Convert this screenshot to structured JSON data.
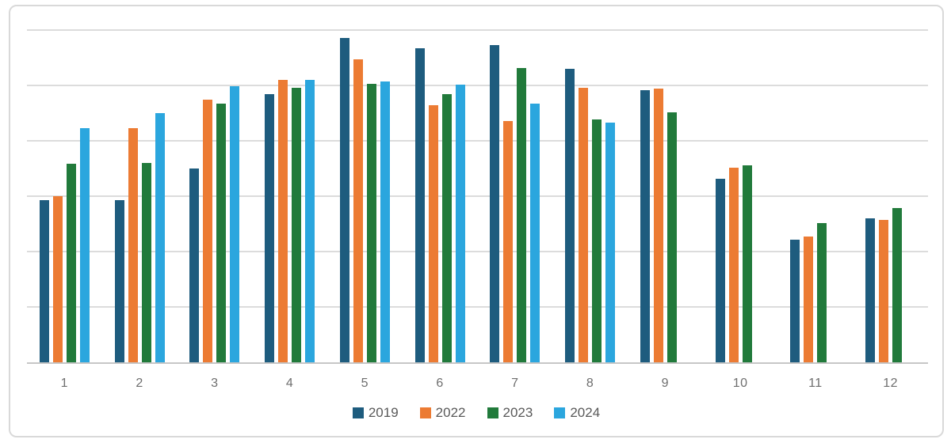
{
  "chart_data": {
    "type": "bar",
    "title": "",
    "xlabel": "",
    "ylabel": "",
    "categories": [
      "1",
      "2",
      "3",
      "4",
      "5",
      "6",
      "7",
      "8",
      "9",
      "10",
      "11",
      "12"
    ],
    "series": [
      {
        "name": "2019",
        "color": "#1E5C7E",
        "values": [
          2.93,
          2.93,
          3.5,
          4.84,
          5.86,
          5.67,
          5.73,
          5.3,
          4.91,
          3.31,
          2.21,
          2.6
        ]
      },
      {
        "name": "2022",
        "color": "#EC7B33",
        "values": [
          3.0,
          4.23,
          4.74,
          5.1,
          5.47,
          4.64,
          4.36,
          4.96,
          4.94,
          3.51,
          2.27,
          2.57
        ]
      },
      {
        "name": "2023",
        "color": "#217A3B",
        "values": [
          3.59,
          3.6,
          4.67,
          4.96,
          5.03,
          4.84,
          5.31,
          4.39,
          4.51,
          3.56,
          2.51,
          2.79
        ]
      },
      {
        "name": "2024",
        "color": "#2BA6DE",
        "values": [
          4.23,
          4.5,
          4.99,
          5.1,
          5.07,
          5.01,
          4.67,
          4.33,
          null,
          null,
          null,
          null
        ]
      }
    ],
    "ylim": [
      0,
      6
    ],
    "y_gridline_interval": 1,
    "y_axis_labels_visible": false,
    "grid_horizontal": true,
    "legend_position": "bottom",
    "legend_labels": [
      "2019",
      "2022",
      "2023",
      "2024"
    ]
  },
  "colors": {
    "background": "#FFFFFF",
    "card_border": "#D9D9D9",
    "gridline": "#DCDCDC",
    "axis_line": "#C6C6C6",
    "tick_label": "#6E6E6E",
    "legend_label": "#595959"
  }
}
